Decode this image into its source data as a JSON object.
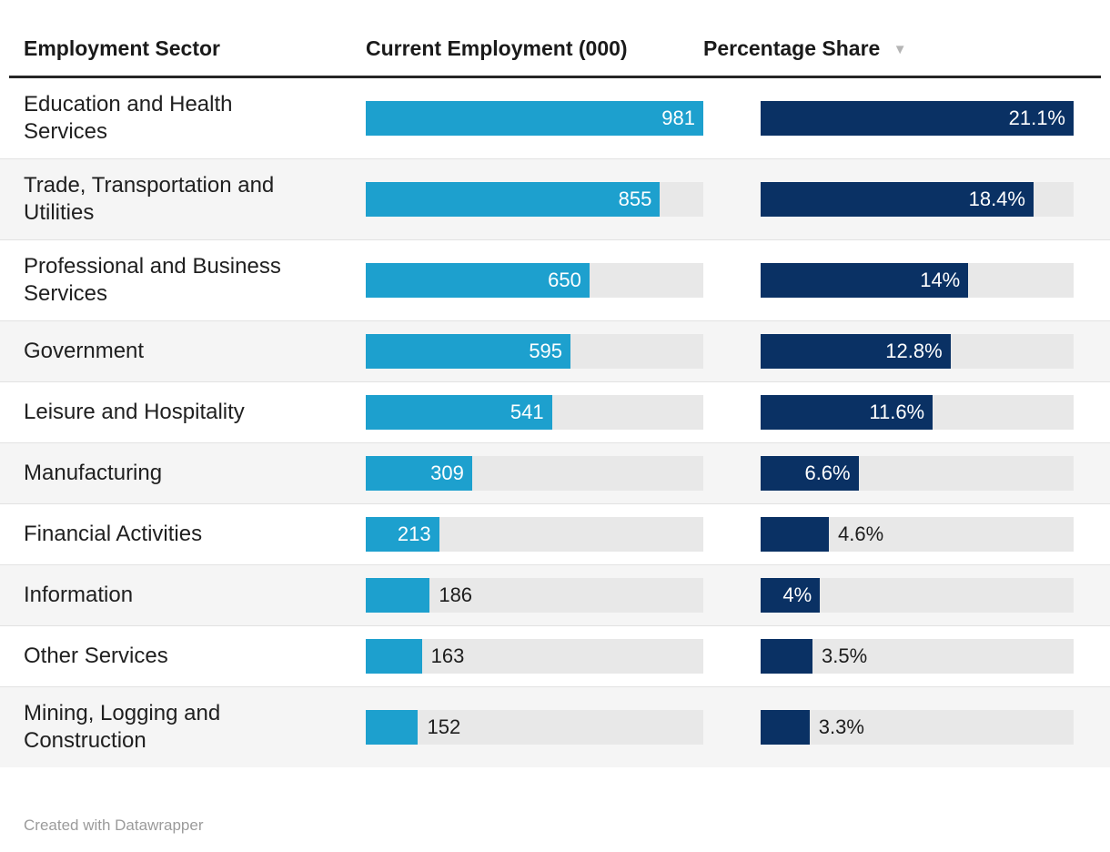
{
  "header": {
    "columns": [
      {
        "label": "Employment Sector",
        "sortable": true,
        "sort_icon": ""
      },
      {
        "label": "Current Employment (000)",
        "sortable": true,
        "sort_icon": ""
      },
      {
        "label": "Percentage Share",
        "sortable": true,
        "sort_icon": "▼",
        "sorted": "descending"
      }
    ]
  },
  "scales": {
    "employment_max": 981,
    "share_max": 21.1
  },
  "rows": [
    {
      "sector": "Education and Health Services",
      "employment": 981,
      "employment_label": "981",
      "employment_label_inside": true,
      "share": 21.1,
      "share_label": "21.1%",
      "share_label_inside": true
    },
    {
      "sector": "Trade, Transportation and Utilities",
      "employment": 855,
      "employment_label": "855",
      "employment_label_inside": true,
      "share": 18.4,
      "share_label": "18.4%",
      "share_label_inside": true
    },
    {
      "sector": "Professional and Business Services",
      "employment": 650,
      "employment_label": "650",
      "employment_label_inside": true,
      "share": 14,
      "share_label": "14%",
      "share_label_inside": true
    },
    {
      "sector": "Government",
      "employment": 595,
      "employment_label": "595",
      "employment_label_inside": true,
      "share": 12.8,
      "share_label": "12.8%",
      "share_label_inside": true
    },
    {
      "sector": "Leisure and Hospitality",
      "employment": 541,
      "employment_label": "541",
      "employment_label_inside": true,
      "share": 11.6,
      "share_label": "11.6%",
      "share_label_inside": true
    },
    {
      "sector": "Manufacturing",
      "employment": 309,
      "employment_label": "309",
      "employment_label_inside": true,
      "share": 6.6,
      "share_label": "6.6%",
      "share_label_inside": true
    },
    {
      "sector": "Financial Activities",
      "employment": 213,
      "employment_label": "213",
      "employment_label_inside": true,
      "share": 4.6,
      "share_label": "4.6%",
      "share_label_inside": false
    },
    {
      "sector": "Information",
      "employment": 186,
      "employment_label": "186",
      "employment_label_inside": false,
      "share": 4,
      "share_label": "4%",
      "share_label_inside": true
    },
    {
      "sector": "Other Services",
      "employment": 163,
      "employment_label": "163",
      "employment_label_inside": false,
      "share": 3.5,
      "share_label": "3.5%",
      "share_label_inside": false
    },
    {
      "sector": "Mining, Logging and Construction",
      "employment": 152,
      "employment_label": "152",
      "employment_label_inside": false,
      "share": 3.3,
      "share_label": "3.3%",
      "share_label_inside": false
    }
  ],
  "footer": {
    "credit": "Created with Datawrapper"
  },
  "colors": {
    "employment_bar": "#1da0ce",
    "share_bar": "#0a3164",
    "track": "#e8e8e8",
    "stripe": "#f5f5f5",
    "row_border": "#e2e2e2",
    "header_rule": "#262626",
    "value_inside": "#ffffff",
    "value_outside": "#1d1d1d",
    "sort_arrow": "#b5b5b5",
    "footer_text": "#9b9b9b"
  },
  "chart_data": {
    "type": "table",
    "title": "",
    "categories": [
      "Education and Health Services",
      "Trade, Transportation and Utilities",
      "Professional and Business Services",
      "Government",
      "Leisure and Hospitality",
      "Manufacturing",
      "Financial Activities",
      "Information",
      "Other Services",
      "Mining, Logging and Construction"
    ],
    "series": [
      {
        "name": "Current Employment (000)",
        "type": "bar",
        "values": [
          981,
          855,
          650,
          595,
          541,
          309,
          213,
          186,
          163,
          152
        ],
        "axis_range": [
          0,
          981
        ],
        "bar_color": "#1da0ce"
      },
      {
        "name": "Percentage Share",
        "type": "bar",
        "values": [
          21.1,
          18.4,
          14,
          12.8,
          11.6,
          6.6,
          4.6,
          4,
          3.5,
          3.3
        ],
        "axis_range": [
          0,
          21.1
        ],
        "bar_color": "#0a3164"
      }
    ],
    "sorted_by": "Percentage Share (descending)",
    "grid": false,
    "legend_position": "none"
  }
}
